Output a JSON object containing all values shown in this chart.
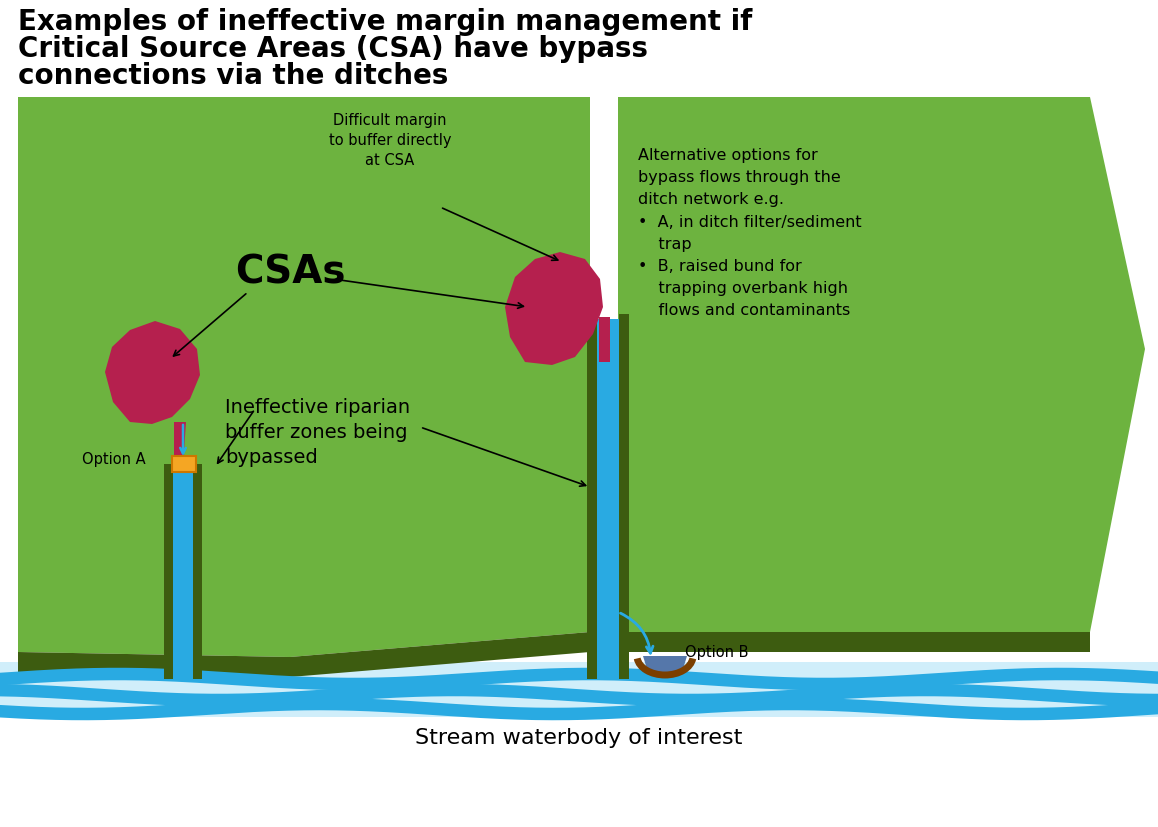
{
  "title_line1": "Examples of ineffective margin management if",
  "title_line2": "Critical Source Areas (CSA) have bypass",
  "title_line3": "connections via the ditches",
  "title_fontsize": 20,
  "bg_color": "#ffffff",
  "light_green": "#6db33f",
  "dark_green": "#3d5c10",
  "blue": "#29aae2",
  "crimson": "#b5204e",
  "orange": "#f5a623",
  "brown": "#7b3f00",
  "slate_blue": "#5577aa",
  "stream_label": "Stream waterbody of interest",
  "text_difficult": "Difficult margin\nto buffer directly\nat CSA",
  "text_csas": "CSAs",
  "text_ineffective": "Ineffective riparian\nbuffer zones being\nbypassed",
  "text_option_a": "Option A",
  "text_option_b": "Option B",
  "text_alt_line1": "Alternative options for",
  "text_alt_line2": "bypass flows through the",
  "text_alt_line3": "ditch network e.g.",
  "text_alt_line4": "•  A, in ditch filter/sediment",
  "text_alt_line5": "    trap",
  "text_alt_line6": "•  B, raised bund for",
  "text_alt_line7": "    trapping overbank high",
  "text_alt_line8": "    flows and contaminants"
}
